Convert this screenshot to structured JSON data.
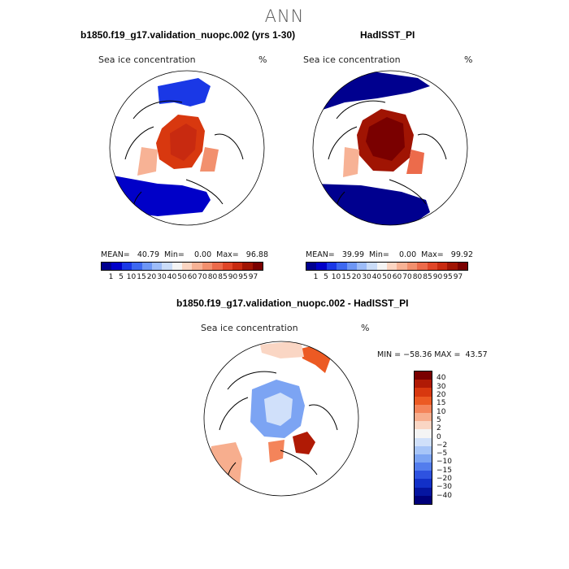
{
  "page": {
    "title": "ANN",
    "model_title": "b1850.f19_g17.validation_nuopc.002 (yrs 1-30)",
    "obs_title": "HadISST_PI",
    "diff_title": "b1850.f19_g17.validation_nuopc.002 - HadISST_PI",
    "var_label": "Sea ice concentration",
    "unit": "%"
  },
  "colors": {
    "levels_abs": [
      "#00008f",
      "#0000c8",
      "#1a38e6",
      "#3d68f0",
      "#6d96f5",
      "#9dbcf8",
      "#cadcf8",
      "#f4f4f4",
      "#fbd5c2",
      "#f7b295",
      "#f2906e",
      "#ec6b4b",
      "#e04628",
      "#c82a10",
      "#a01403",
      "#7a0000"
    ],
    "levels_diff": [
      "#7a0000",
      "#b01a05",
      "#d8380f",
      "#ec5a23",
      "#f4845a",
      "#f7ae8e",
      "#fad6c4",
      "#f4f4f4",
      "#d0e0fa",
      "#a7c5f8",
      "#7ca4f3",
      "#537ded",
      "#2e52e0",
      "#1230c8",
      "#0515a0",
      "#00007a"
    ]
  },
  "chart_data": [
    {
      "type": "heatmap",
      "name": "model",
      "title": "b1850.f19_g17.validation_nuopc.002 (yrs 1-30)",
      "variable": "Sea ice concentration",
      "units": "%",
      "stats": {
        "mean": "40.79",
        "min": "0.00",
        "max": "96.88"
      },
      "stats_text": "MEAN=   40.79  Min=    0.00  Max=   96.88",
      "colorbar_ticks": [
        "1",
        "5",
        "10",
        "15",
        "20",
        "30",
        "40",
        "50",
        "60",
        "70",
        "80",
        "85",
        "90",
        "95",
        "97"
      ],
      "projection": "north polar stereographic"
    },
    {
      "type": "heatmap",
      "name": "observations",
      "title": "HadISST_PI",
      "variable": "Sea ice concentration",
      "units": "%",
      "stats": {
        "mean": "39.99",
        "min": "0.00",
        "max": "99.92"
      },
      "stats_text": "MEAN=   39.99  Min=    0.00  Max=   99.92",
      "colorbar_ticks": [
        "1",
        "5",
        "10",
        "15",
        "20",
        "30",
        "40",
        "50",
        "60",
        "70",
        "80",
        "85",
        "90",
        "95",
        "97"
      ],
      "projection": "north polar stereographic"
    },
    {
      "type": "heatmap",
      "name": "difference",
      "title": "b1850.f19_g17.validation_nuopc.002 - HadISST_PI",
      "variable": "Sea ice concentration",
      "units": "%",
      "stats": {
        "min": "-58.36",
        "max": "43.57"
      },
      "stats_text": "MIN = −58.36 MAX =  43.57",
      "colorbar_ticks": [
        "40",
        "30",
        "20",
        "15",
        "10",
        "5",
        "2",
        "0",
        "−2",
        "−5",
        "−10",
        "−15",
        "−20",
        "−30",
        "−40"
      ],
      "projection": "north polar stereographic"
    }
  ]
}
